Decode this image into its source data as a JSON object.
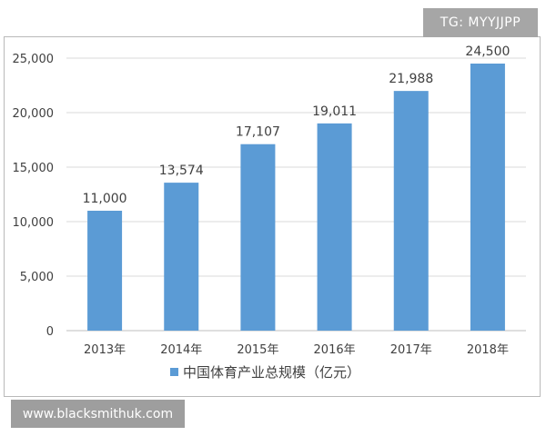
{
  "watermarks": {
    "top_right": "TG: MYYJJPP",
    "bottom_left": "www.blacksmithuk.com"
  },
  "chart_data": {
    "type": "bar",
    "categories": [
      "2013年",
      "2014年",
      "2015年",
      "2016年",
      "2017年",
      "2018年"
    ],
    "series": [
      {
        "name": "中国体育产业总规模（亿元）",
        "values": [
          11000,
          13574,
          17107,
          19011,
          21988,
          24500
        ]
      }
    ],
    "data_labels": [
      "11,000",
      "13,574",
      "17,107",
      "19,011",
      "21,988",
      "24,500"
    ],
    "y_ticks": [
      "0",
      "5,000",
      "10,000",
      "15,000",
      "20,000",
      "25,000"
    ],
    "ylim": [
      0,
      25000
    ],
    "grid": true,
    "legend_position": "bottom",
    "bar_color": "#5b9bd5"
  }
}
